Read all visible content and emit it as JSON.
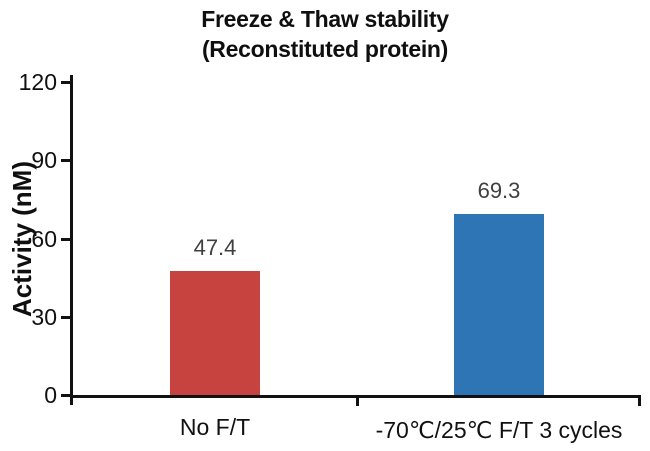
{
  "title": {
    "line1": "Freeze & Thaw stability",
    "line2": "(Reconstituted protein)"
  },
  "y_axis": {
    "label": "Activity (nM)"
  },
  "chart_data": {
    "type": "bar",
    "title": "Freeze & Thaw stability (Reconstituted protein)",
    "categories": [
      "No F/T",
      "-70℃/25℃ F/T 3 cycles"
    ],
    "values": [
      47.4,
      69.3
    ],
    "value_labels": [
      "47.4",
      "69.3"
    ],
    "bar_colors": [
      "#c64340",
      "#2e75b5"
    ],
    "xlabel": "",
    "ylabel": "Activity (nM)",
    "ylim": [
      0,
      120
    ],
    "yticks": [
      0,
      30,
      60,
      90,
      120
    ],
    "grid": false,
    "legend": "none",
    "axis_color": "#111111",
    "tick_label_color": "#111111",
    "category_label_color": "#111111",
    "value_label_color": "#404040",
    "background": "#ffffff"
  }
}
